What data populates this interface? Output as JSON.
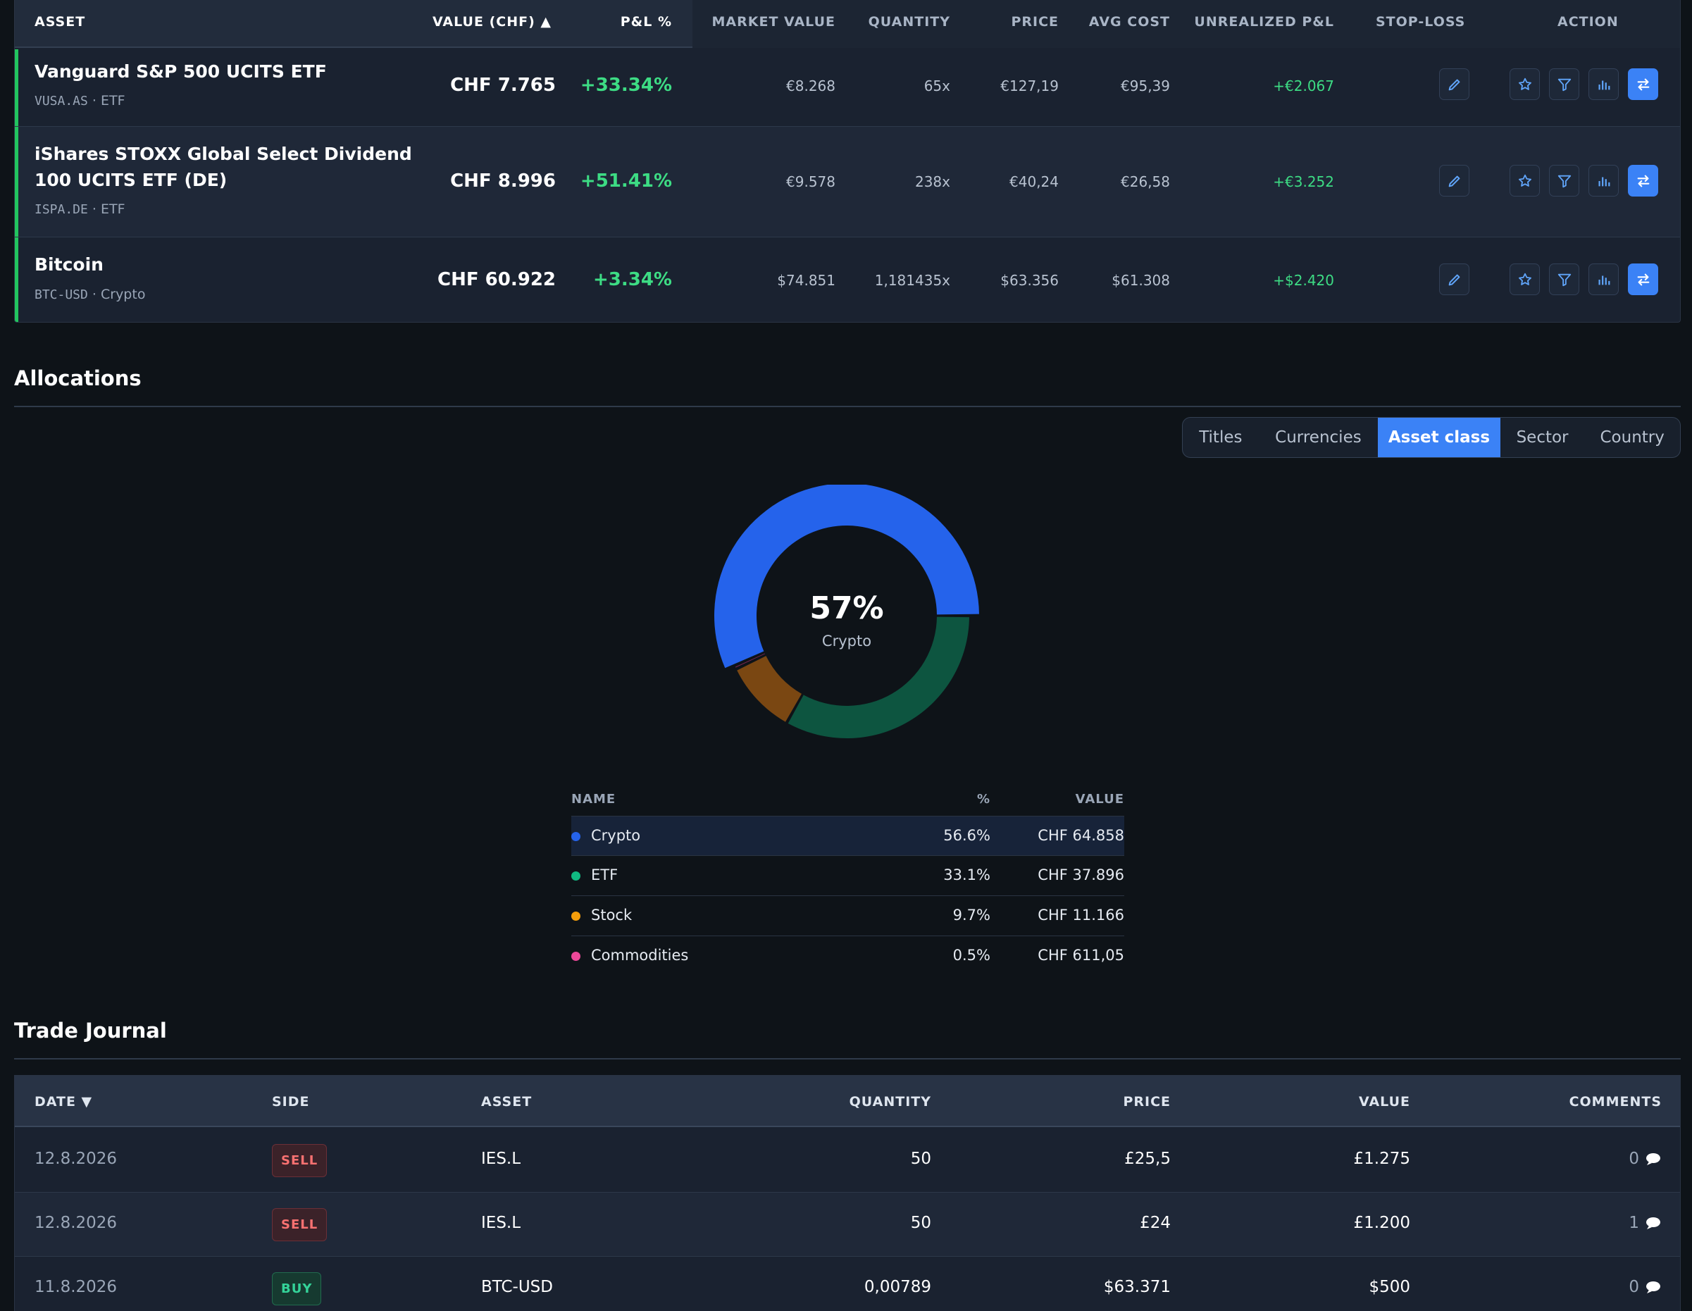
{
  "holdings": {
    "columns": {
      "asset": "ASSET",
      "value": "VALUE (CHF) ▲",
      "pl": "P&L %",
      "market_value": "MARKET VALUE",
      "quantity": "QUANTITY",
      "price": "PRICE",
      "avg_cost": "AVG COST",
      "unrealized": "UNREALIZED P&L",
      "stop_loss": "STOP-LOSS",
      "action": "ACTION"
    },
    "rows": [
      {
        "name": "Vanguard S&P 500 UCITS ETF",
        "ticker": "VUSA.AS",
        "type": "ETF",
        "value": "CHF 7.765",
        "pl": "+33.34%",
        "market_value": "€8.268",
        "quantity": "65x",
        "price": "€127,19",
        "avg_cost": "€95,39",
        "unrealized": "+€2.067"
      },
      {
        "name": "iShares STOXX Global Select Dividend 100 UCITS ETF (DE)",
        "ticker": "ISPA.DE",
        "type": "ETF",
        "value": "CHF 8.996",
        "pl": "+51.41%",
        "market_value": "€9.578",
        "quantity": "238x",
        "price": "€40,24",
        "avg_cost": "€26,58",
        "unrealized": "+€3.252"
      },
      {
        "name": "Bitcoin",
        "ticker": "BTC-USD",
        "type": "Crypto",
        "value": "CHF 60.922",
        "pl": "+3.34%",
        "market_value": "$74.851",
        "quantity": "1,181435x",
        "price": "$63.356",
        "avg_cost": "$61.308",
        "unrealized": "+$2.420"
      }
    ],
    "action_icons": [
      "pencil-icon",
      "star-icon",
      "filter-icon",
      "bar-chart-icon",
      "swap-arrows-icon"
    ]
  },
  "allocations": {
    "title": "Allocations",
    "tabs": [
      "Titles",
      "Currencies",
      "Asset class",
      "Sector",
      "Country"
    ],
    "active_tab": "Asset class",
    "donut": {
      "center_pct": "57%",
      "center_label": "Crypto"
    },
    "table": {
      "columns": {
        "name": "NAME",
        "pct": "%",
        "value": "VALUE"
      },
      "rows": [
        {
          "name": "Crypto",
          "pct": "56.6%",
          "value": "CHF 64.858",
          "color": "#2563eb",
          "share": 56.6
        },
        {
          "name": "ETF",
          "pct": "33.1%",
          "value": "CHF 37.896",
          "color": "#10b981",
          "share": 33.1
        },
        {
          "name": "Stock",
          "pct": "9.7%",
          "value": "CHF 11.166",
          "color": "#f59e0b",
          "share": 9.7
        },
        {
          "name": "Commodities",
          "pct": "0.5%",
          "value": "CHF 611,05",
          "color": "#ec4899",
          "share": 0.5
        }
      ]
    }
  },
  "journal": {
    "title": "Trade Journal",
    "columns": {
      "date": "DATE ▼",
      "side": "SIDE",
      "asset": "ASSET",
      "quantity": "QUANTITY",
      "price": "PRICE",
      "value": "VALUE",
      "comments": "COMMENTS"
    },
    "rows": [
      {
        "date": "12.8.2026",
        "side": "SELL",
        "asset": "IES.L",
        "quantity": "50",
        "price": "£25,5",
        "value": "£1.275",
        "comments": "0"
      },
      {
        "date": "12.8.2026",
        "side": "SELL",
        "asset": "IES.L",
        "quantity": "50",
        "price": "£24",
        "value": "£1.200",
        "comments": "1"
      },
      {
        "date": "11.8.2026",
        "side": "BUY",
        "asset": "BTC-USD",
        "quantity": "0,00789",
        "price": "$63.371",
        "value": "$500",
        "comments": "0"
      }
    ]
  },
  "colors": {
    "accent": "#3b82f6",
    "positive": "#3ddc84",
    "sell": "#f87171",
    "buy": "#34d399"
  }
}
